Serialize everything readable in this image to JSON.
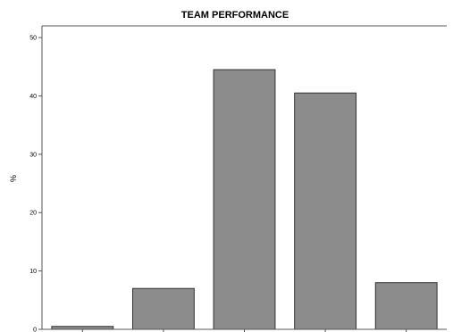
{
  "chart_data": {
    "type": "bar",
    "title": "TEAM PERFORMANCE",
    "xlabel": "",
    "ylabel": "%",
    "categories": [
      "",
      "",
      "",
      "",
      ""
    ],
    "values": [
      0.5,
      7,
      44.5,
      40.5,
      8
    ],
    "ylim": [
      0,
      52
    ],
    "yticks": [
      0,
      10,
      20,
      30,
      40,
      50
    ],
    "ytick_labels": [
      "0",
      "10",
      "20",
      "30",
      "40",
      "50"
    ],
    "grid": false,
    "bar_color": "#8c8c8c",
    "bar_edge_color": "#333333"
  }
}
